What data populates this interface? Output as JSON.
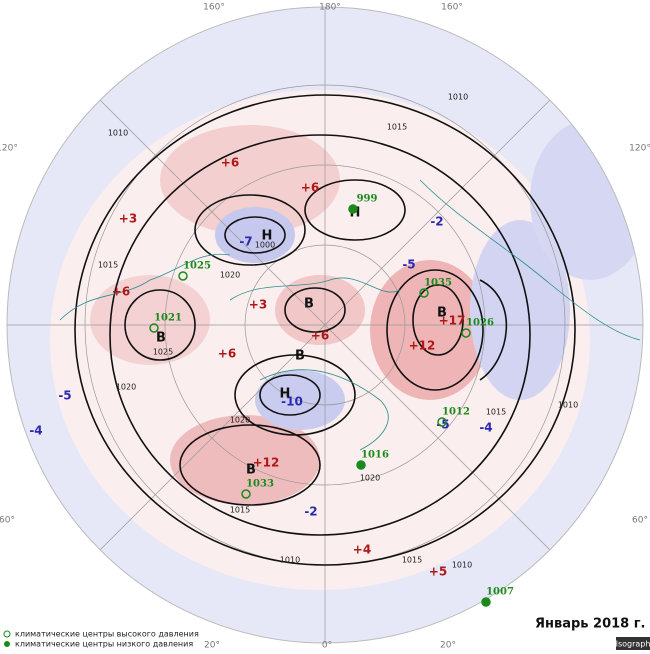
{
  "title": "Январь 2018 г.",
  "watermark": "Isograph",
  "legend": [
    "климатические центры высокого давления",
    "климатические центры низкого давления"
  ],
  "longitudes": [
    "160°",
    "180°",
    "160°",
    "120°",
    "120°",
    "60°",
    "60°",
    "20°",
    "0°",
    "20°"
  ],
  "isobar_labels": [
    "1010",
    "1015",
    "1010",
    "1015",
    "1020",
    "1010",
    "1015",
    "1000",
    "1020",
    "1025",
    "1020",
    "1015",
    "1010",
    "1020",
    "1015",
    "1010"
  ],
  "anomalies": [
    "+6",
    "+3",
    "+6",
    "-7",
    "-2",
    "-5",
    "+6",
    "+3",
    "+6",
    "+6",
    "+17",
    "+12",
    "-10",
    "-5",
    "-4",
    "-5",
    "-4",
    "+12",
    "-2",
    "+4",
    "+5"
  ],
  "centers": [
    "Н",
    "Н",
    "В",
    "В",
    "В",
    "Н",
    "В",
    "В"
  ],
  "climatic_centers": [
    "999",
    "1025",
    "1021",
    "1035",
    "1026",
    "1012",
    "1016",
    "1033",
    "1007"
  ]
}
